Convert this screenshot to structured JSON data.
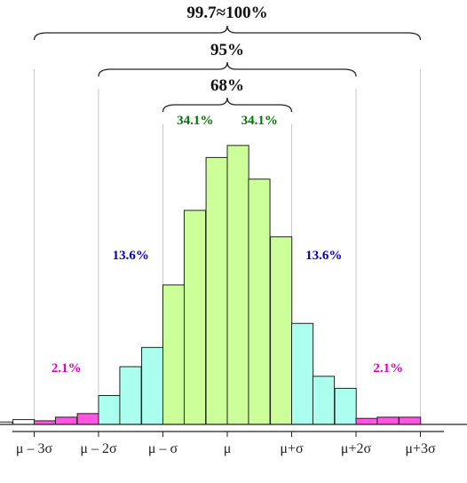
{
  "chart_data": {
    "type": "bar",
    "title": "",
    "xlabel": "",
    "ylabel": "",
    "tick_labels": [
      "μ – 3σ",
      "μ – 2σ",
      "μ – σ",
      "μ",
      "μ+σ",
      "μ+2σ",
      "μ+3σ"
    ],
    "bin_width_sigma": 0.333,
    "x_start_sigma": -3.67,
    "bars": [
      {
        "x": -3.67,
        "value": 1.0,
        "color": "#ffffff"
      },
      {
        "x": -3.33,
        "value": 2.0,
        "color": "#ffffff"
      },
      {
        "x": -3.0,
        "value": 1.5,
        "color": "#ff55e0"
      },
      {
        "x": -2.67,
        "value": 3.0,
        "color": "#ff55e0"
      },
      {
        "x": -2.33,
        "value": 4.5,
        "color": "#ff55e0"
      },
      {
        "x": -2.0,
        "value": 12.0,
        "color": "#aaffee"
      },
      {
        "x": -1.67,
        "value": 24.0,
        "color": "#aaffee"
      },
      {
        "x": -1.33,
        "value": 32.0,
        "color": "#aaffee"
      },
      {
        "x": -1.0,
        "value": 58.0,
        "color": "#ccff99"
      },
      {
        "x": -0.67,
        "value": 89.0,
        "color": "#ccff99"
      },
      {
        "x": -0.33,
        "value": 111.0,
        "color": "#ccff99"
      },
      {
        "x": 0.0,
        "value": 116.0,
        "color": "#ccff99"
      },
      {
        "x": 0.33,
        "value": 102.0,
        "color": "#ccff99"
      },
      {
        "x": 0.67,
        "value": 78.0,
        "color": "#ccff99"
      },
      {
        "x": 1.0,
        "value": 42.0,
        "color": "#aaffee"
      },
      {
        "x": 1.33,
        "value": 20.0,
        "color": "#aaffee"
      },
      {
        "x": 1.67,
        "value": 15.0,
        "color": "#aaffee"
      },
      {
        "x": 2.0,
        "value": 2.5,
        "color": "#ff55e0"
      },
      {
        "x": 2.33,
        "value": 3.0,
        "color": "#ff55e0"
      },
      {
        "x": 2.67,
        "value": 3.0,
        "color": "#ff55e0"
      }
    ],
    "ylim": [
      0,
      120
    ],
    "region_labels": [
      {
        "text": "2.1%",
        "side": "left",
        "color": "#dd00cc"
      },
      {
        "text": "13.6%",
        "side": "left",
        "color": "#0000cc"
      },
      {
        "text": "34.1%",
        "side": "left",
        "color": "#007700"
      },
      {
        "text": "34.1%",
        "side": "right",
        "color": "#007700"
      },
      {
        "text": "13.6%",
        "side": "right",
        "color": "#0000cc"
      },
      {
        "text": "2.1%",
        "side": "right",
        "color": "#dd00cc"
      }
    ],
    "brace_labels": [
      "99.7≈100%",
      "95%",
      "68%"
    ],
    "grid": false
  }
}
